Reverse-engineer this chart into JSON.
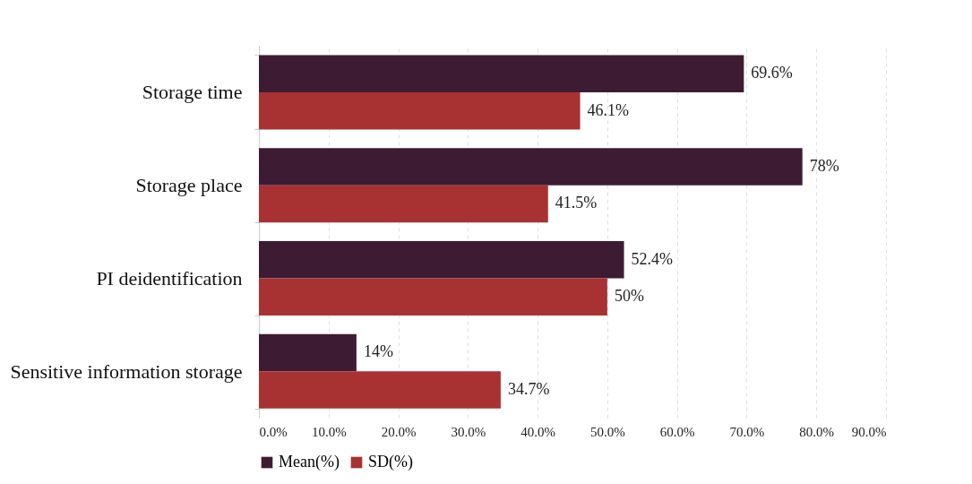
{
  "chart_data": {
    "type": "bar",
    "orientation": "horizontal",
    "categories": [
      "Storage time",
      "Storage place",
      "PI deidentification",
      "Sensitive information storage"
    ],
    "series": [
      {
        "name": "Mean(%)",
        "color": "#3d1c33",
        "values": [
          69.6,
          78,
          52.4,
          14
        ],
        "value_labels": [
          "69.6%",
          "78%",
          "52.4%",
          "14%"
        ]
      },
      {
        "name": "SD(%)",
        "color": "#a83232",
        "values": [
          46.1,
          41.5,
          50,
          34.7
        ],
        "value_labels": [
          "46.1%",
          "41.5%",
          "50%",
          "34.7%"
        ]
      }
    ],
    "xlim": [
      0,
      90
    ],
    "xticks": [
      {
        "value": 0,
        "label": "0.0%"
      },
      {
        "value": 10,
        "label": "10.0%"
      },
      {
        "value": 20,
        "label": "20.0%"
      },
      {
        "value": 30,
        "label": "30.0%"
      },
      {
        "value": 40,
        "label": "40.0%"
      },
      {
        "value": 50,
        "label": "50.0%"
      },
      {
        "value": 60,
        "label": "60.0%"
      },
      {
        "value": 70,
        "label": "70.0%"
      },
      {
        "value": 80,
        "label": "80.0%"
      },
      {
        "value": 90,
        "label": "90.0%"
      }
    ],
    "grid": "x",
    "legend": "bottom"
  }
}
